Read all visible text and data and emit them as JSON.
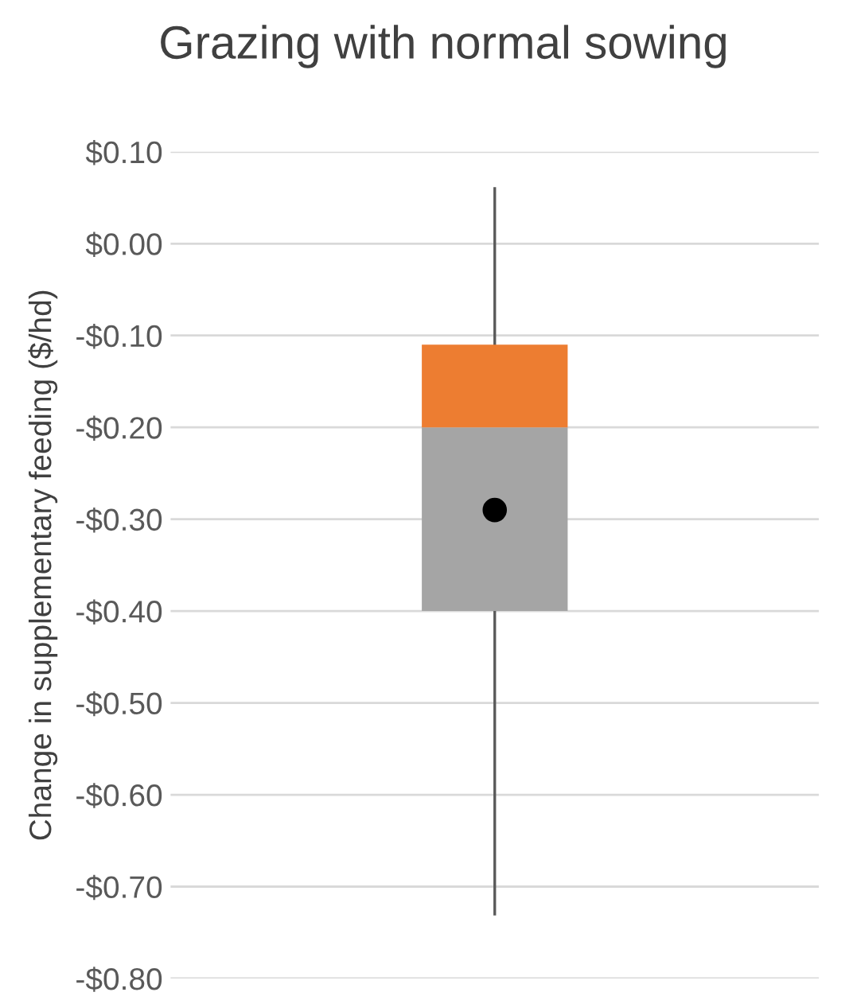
{
  "chart_data": {
    "type": "box",
    "title": "Grazing with normal sowing",
    "ylabel": "Change in supplementary feeding ($/hd)",
    "categories": [
      null
    ],
    "boxes": [
      {
        "low": -0.73,
        "q1": -0.4,
        "median": -0.2,
        "q3": -0.11,
        "high": 0.06,
        "mean": -0.29
      }
    ],
    "colors": [
      [
        "#a5a5a5",
        "#ed7d31"
      ]
    ],
    "ylim": [
      -0.8,
      0.1
    ],
    "yticks": [
      {
        "value": 0.1,
        "label": "$0.10"
      },
      {
        "value": 0.0,
        "label": "$0.00"
      },
      {
        "value": -0.1,
        "label": "-$0.10"
      },
      {
        "value": -0.2,
        "label": "-$0.20"
      },
      {
        "value": -0.3,
        "label": "-$0.30"
      },
      {
        "value": -0.4,
        "label": "-$0.40"
      },
      {
        "value": -0.5,
        "label": "-$0.50"
      },
      {
        "value": -0.6,
        "label": "-$0.60"
      },
      {
        "value": -0.7,
        "label": "-$0.70"
      },
      {
        "value": -0.8,
        "label": "-$0.80"
      }
    ],
    "grid": "y",
    "marker": "circle"
  }
}
